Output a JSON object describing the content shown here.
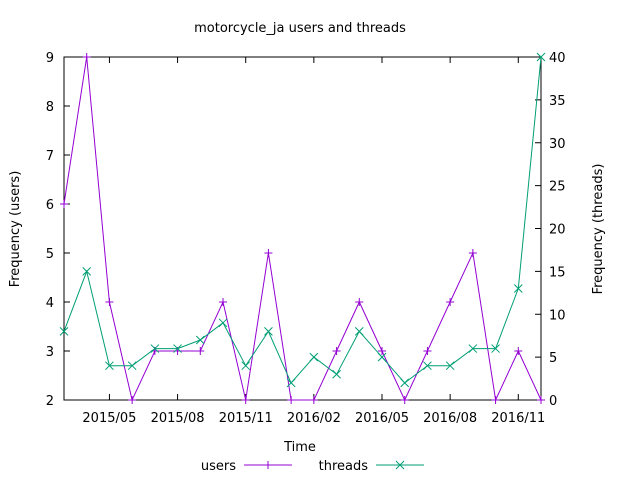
{
  "chart_data": {
    "type": "line",
    "title": "motorcycle_ja users and threads",
    "xlabel": "Time",
    "ylabel_left": "Frequency (users)",
    "ylabel_right": "Frequency (threads)",
    "x_ticks": [
      "2015/05",
      "2015/08",
      "2015/11",
      "2016/02",
      "2016/05",
      "2016/08",
      "2016/11"
    ],
    "x_tick_month_index": [
      2,
      5,
      8,
      11,
      14,
      17,
      20
    ],
    "x": [
      "2015/03",
      "2015/04",
      "2015/05",
      "2015/06",
      "2015/07",
      "2015/08",
      "2015/09",
      "2015/10",
      "2015/11",
      "2015/12",
      "2016/01",
      "2016/02",
      "2016/03",
      "2016/04",
      "2016/05",
      "2016/06",
      "2016/07",
      "2016/08",
      "2016/09",
      "2016/10",
      "2016/11",
      "2016/12"
    ],
    "y_left_ticks": [
      2,
      3,
      4,
      5,
      6,
      7,
      8,
      9
    ],
    "y_right_ticks": [
      0,
      5,
      10,
      15,
      20,
      25,
      30,
      35,
      40
    ],
    "ylim_left": [
      2,
      9
    ],
    "ylim_right": [
      0,
      40
    ],
    "grid": false,
    "legend_position": "bottom-center",
    "series": [
      {
        "name": "users",
        "axis": "left",
        "marker": "plus",
        "color": "#9400d3",
        "values": [
          6,
          9,
          4,
          2,
          3,
          3,
          3,
          4,
          2,
          5,
          2,
          2,
          3,
          4,
          3,
          2,
          3,
          4,
          5,
          2,
          3,
          2
        ]
      },
      {
        "name": "threads",
        "axis": "right",
        "marker": "x",
        "color": "#009e73",
        "values": [
          8,
          15,
          4,
          4,
          6,
          6,
          7,
          9,
          4,
          8,
          2,
          5,
          3,
          8,
          5,
          2,
          4,
          4,
          6,
          6,
          13,
          40
        ]
      }
    ]
  }
}
